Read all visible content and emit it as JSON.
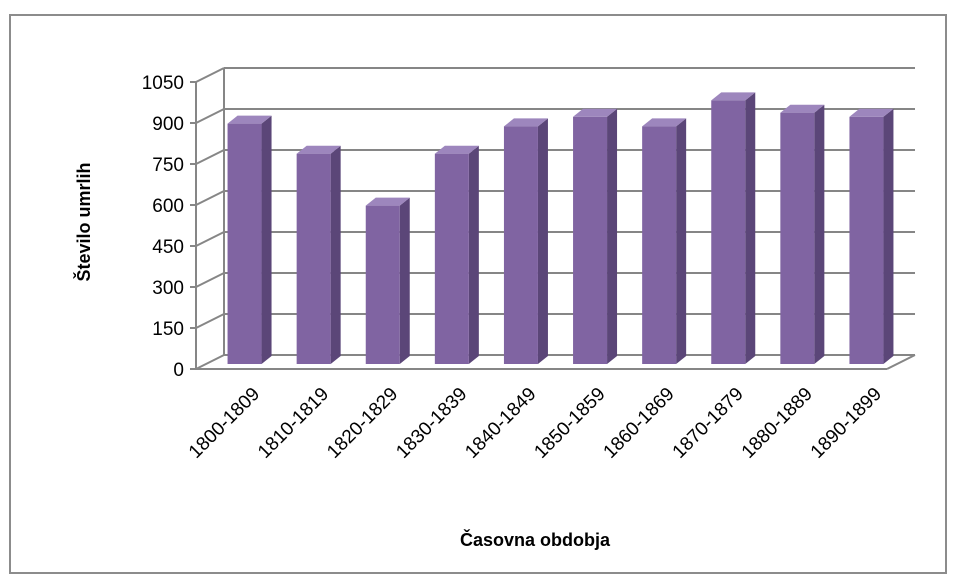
{
  "chart_data": {
    "type": "bar",
    "style": "3d-column",
    "categories": [
      "1800-1809",
      "1810-1819",
      "1820-1829",
      "1830-1839",
      "1840-1849",
      "1850-1859",
      "1860-1869",
      "1870-1879",
      "1880-1889",
      "1890-1899"
    ],
    "series": [
      {
        "values": [
          905,
          795,
          605,
          795,
          895,
          930,
          895,
          990,
          945,
          930
        ]
      }
    ],
    "xlabel": "Časovna obdobja",
    "ylabel": "Število umrlih",
    "ylim": [
      0,
      1050
    ],
    "yticks": [
      0,
      150,
      300,
      450,
      600,
      750,
      900,
      1050
    ],
    "grid": true,
    "legend": "none",
    "colors": {
      "bar_front": "#8064a2",
      "bar_side": "#5b4678",
      "bar_top": "#9d86bd",
      "grid": "#868686",
      "frame": "#8c8c8c"
    }
  }
}
